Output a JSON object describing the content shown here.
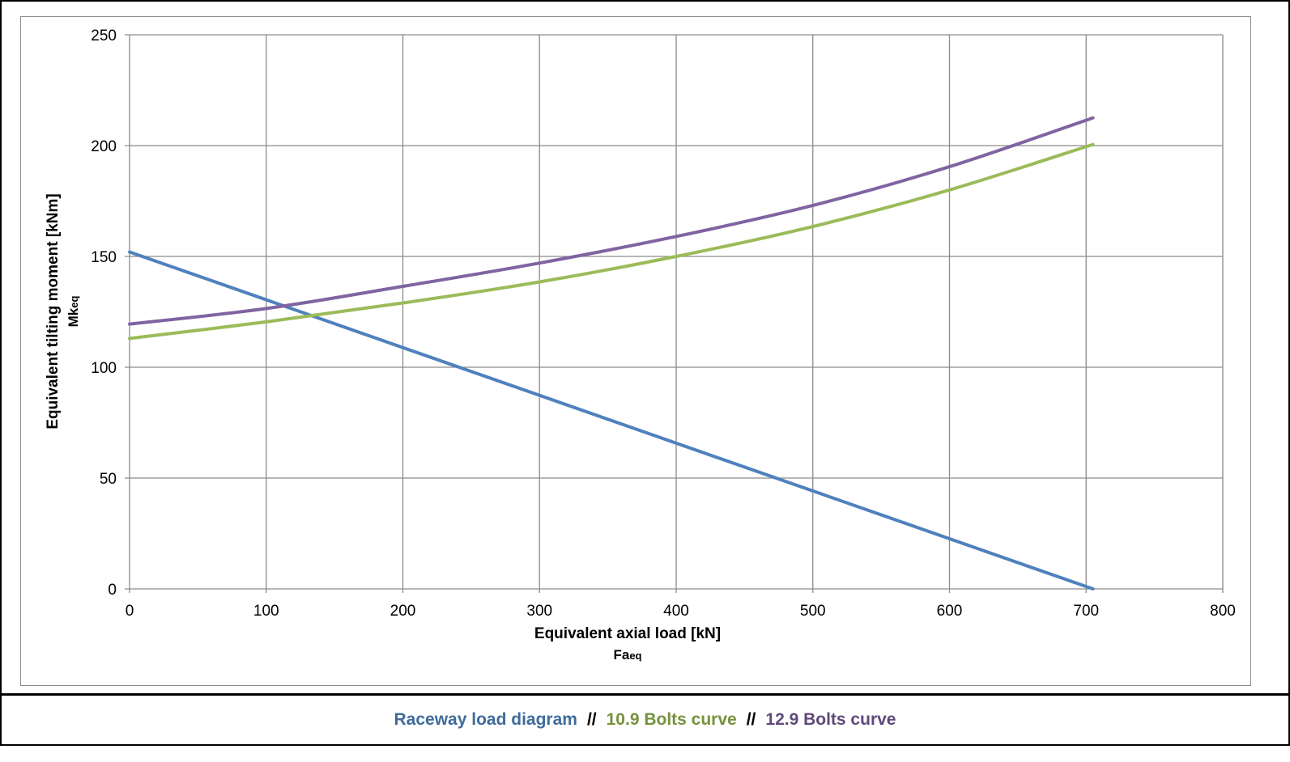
{
  "chart_data": {
    "type": "line",
    "title": "",
    "xlabel": "Equivalent axial load [kN]",
    "xlabel_sub": "Fa",
    "xlabel_sub_index": "eq",
    "ylabel": "Equivalent tilting moment [kNm]",
    "ylabel_sub": "Mk",
    "ylabel_sub_index": "eq",
    "xlim": [
      0,
      800
    ],
    "ylim": [
      0,
      250
    ],
    "xticks": [
      0,
      100,
      200,
      300,
      400,
      500,
      600,
      700,
      800
    ],
    "yticks": [
      0,
      50,
      100,
      150,
      200,
      250
    ],
    "grid": true,
    "legend_position": "bottom",
    "series": [
      {
        "name": "Raceway load diagram",
        "color": "#4f81bd",
        "x": [
          0,
          705
        ],
        "y": [
          152,
          0
        ]
      },
      {
        "name": "10.9 Bolts curve",
        "color": "#9bbb59",
        "x": [
          0,
          100,
          200,
          300,
          400,
          500,
          600,
          705
        ],
        "y": [
          113,
          120.5,
          129,
          138.5,
          150,
          163.5,
          180,
          200.5
        ]
      },
      {
        "name": "12.9 Bolts curve",
        "color": "#8064a2",
        "x": [
          0,
          100,
          200,
          300,
          400,
          500,
          600,
          705
        ],
        "y": [
          119.5,
          126.5,
          136.5,
          147,
          159,
          173,
          190.5,
          212.5
        ]
      }
    ]
  },
  "legend": {
    "items": [
      {
        "label": "Raceway load diagram",
        "color": "#3f6b9b"
      },
      {
        "label": "10.9 Bolts curve",
        "color": "#76923c"
      },
      {
        "label": "12.9 Bolts curve",
        "color": "#5f497a"
      }
    ],
    "separator": "//"
  }
}
